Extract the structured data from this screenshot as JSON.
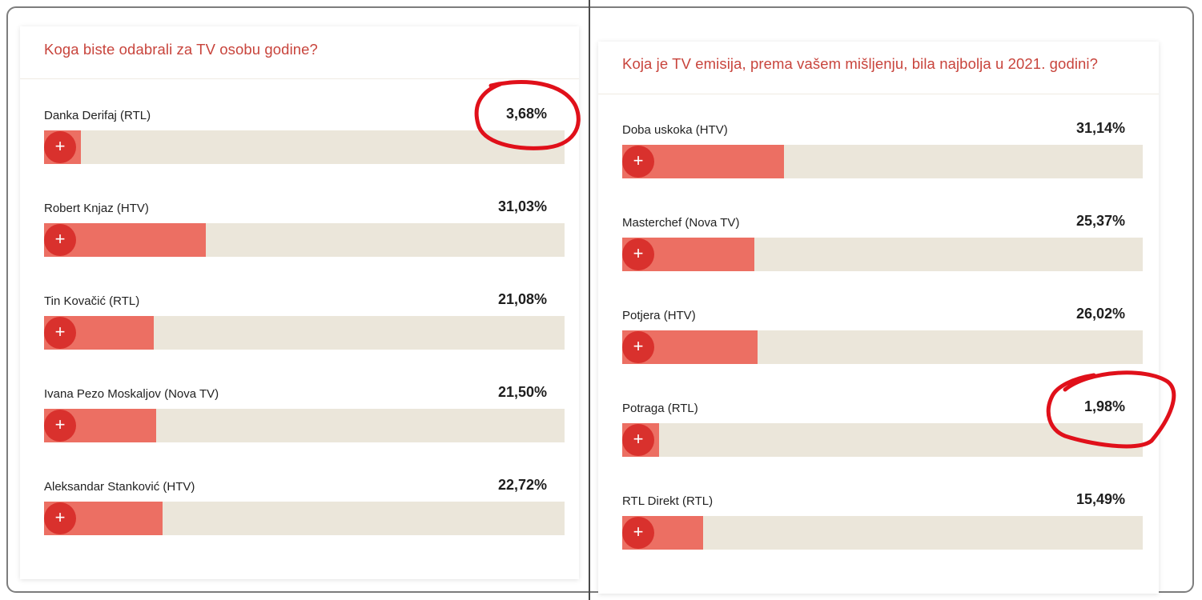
{
  "left_poll": {
    "question": "Koga biste odabrali za TV osobu godine?",
    "options": [
      {
        "label": "Danka Derifaj (RTL)",
        "percent": "3,68%",
        "value": 3.68
      },
      {
        "label": "Robert Knjaz (HTV)",
        "percent": "31,03%",
        "value": 31.03
      },
      {
        "label": "Tin Kovačić (RTL)",
        "percent": "21,08%",
        "value": 21.08
      },
      {
        "label": "Ivana Pezo Moskaljov (Nova TV)",
        "percent": "21,50%",
        "value": 21.5
      },
      {
        "label": "Aleksandar Stanković (HTV)",
        "percent": "22,72%",
        "value": 22.72
      }
    ]
  },
  "right_poll": {
    "question": "Koja je TV emisija, prema vašem mišljenju, bila najbolja u 2021. godini?",
    "options": [
      {
        "label": "Doba uskoka (HTV)",
        "percent": "31,14%",
        "value": 31.14
      },
      {
        "label": "Masterchef (Nova TV)",
        "percent": "25,37%",
        "value": 25.37
      },
      {
        "label": "Potjera (HTV)",
        "percent": "26,02%",
        "value": 26.02
      },
      {
        "label": "Potraga (RTL)",
        "percent": "1,98%",
        "value": 1.98
      },
      {
        "label": "RTL Direkt (RTL)",
        "percent": "15,49%",
        "value": 15.49
      }
    ]
  },
  "vote_button_glyph": "+",
  "colors": {
    "accent": "#c8443c",
    "bar_fill": "#ec6f63",
    "bar_track": "#ebe6da",
    "vote_button": "#d9312d",
    "annotation": "#e0101a"
  },
  "icons": {
    "vote": "plus-icon"
  }
}
